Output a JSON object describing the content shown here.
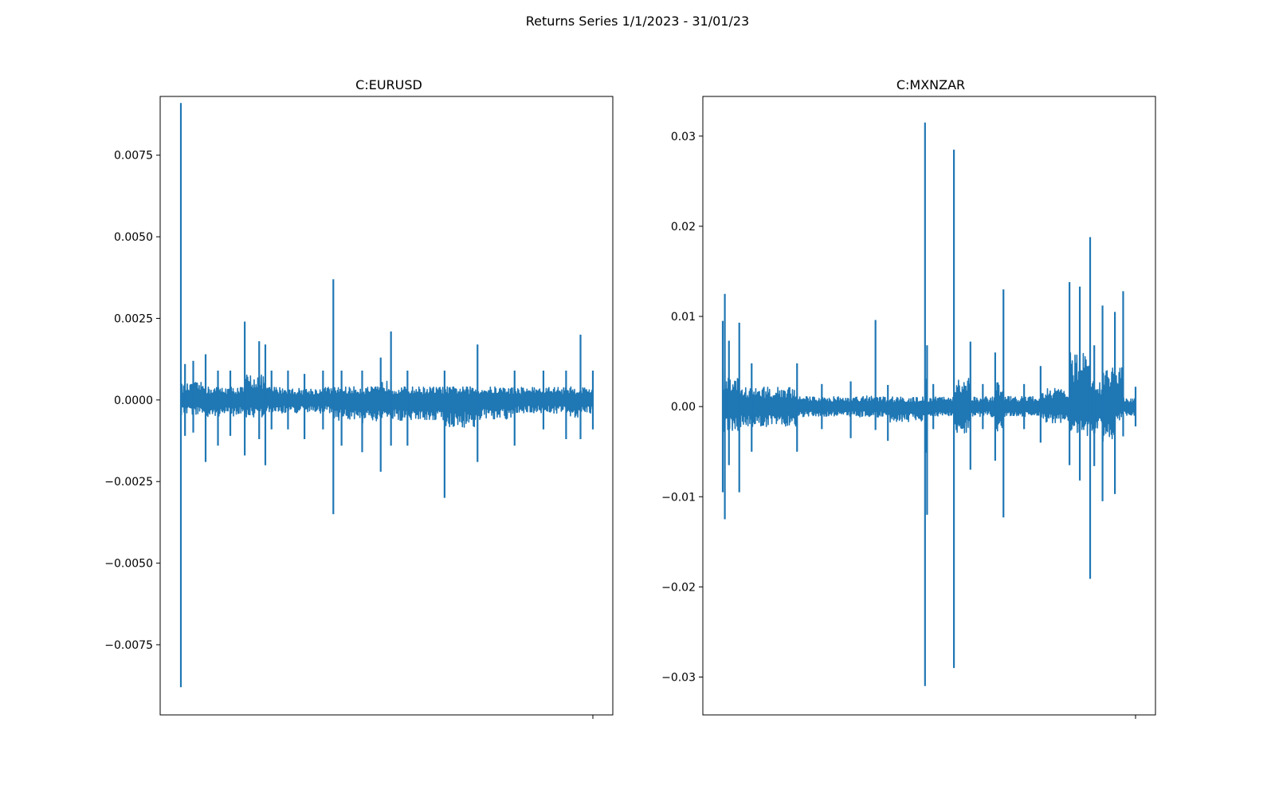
{
  "figure": {
    "suptitle": "Returns Series 1/1/2023 - 31/01/23"
  },
  "line_color": "#1f77b4",
  "chart_data": [
    {
      "type": "line",
      "title": "C:EURUSD",
      "xlabel": "",
      "ylabel": "",
      "ylim": [
        -0.00965,
        0.0093
      ],
      "yticks": [
        -0.0075,
        -0.005,
        -0.0025,
        0.0,
        0.0025,
        0.005,
        0.0075
      ],
      "ytick_labels": [
        "−0.0075",
        "−0.0050",
        "−0.0025",
        "0.0000",
        "0.0025",
        "0.0050",
        "0.0075"
      ],
      "grid": false,
      "series": [
        {
          "color": "#1f77b4",
          "x": [
            0.0,
            0.01,
            0.03,
            0.06,
            0.09,
            0.12,
            0.155,
            0.19,
            0.205,
            0.22,
            0.26,
            0.3,
            0.345,
            0.37,
            0.39,
            0.44,
            0.485,
            0.51,
            0.55,
            0.64,
            0.72,
            0.81,
            0.88,
            0.935,
            0.97,
            1.0
          ],
          "y_high": [
            0.0091,
            0.0011,
            0.0012,
            0.0014,
            0.0009,
            0.0009,
            0.0024,
            0.0018,
            0.0017,
            0.0009,
            0.0009,
            0.0008,
            0.0009,
            0.0037,
            0.0009,
            0.0009,
            0.0013,
            0.0021,
            0.0009,
            0.0009,
            0.0017,
            0.0009,
            0.0009,
            0.0009,
            0.002,
            0.0009
          ],
          "y_low": [
            -0.0088,
            -0.0011,
            -0.001,
            -0.0019,
            -0.0014,
            -0.0011,
            -0.0017,
            -0.0012,
            -0.002,
            -0.0009,
            -0.0009,
            -0.0012,
            -0.0009,
            -0.0035,
            -0.0014,
            -0.0016,
            -0.0022,
            -0.0014,
            -0.0014,
            -0.003,
            -0.0019,
            -0.0014,
            -0.0009,
            -0.0012,
            -0.0012,
            -0.0009
          ]
        }
      ]
    },
    {
      "type": "line",
      "title": "C:MXNZAR",
      "xlabel": "",
      "ylabel": "",
      "ylim": [
        -0.0342,
        0.0344
      ],
      "yticks": [
        -0.03,
        -0.02,
        -0.01,
        0.0,
        0.01,
        0.02,
        0.03
      ],
      "ytick_labels": [
        "−0.03",
        "−0.02",
        "−0.01",
        "0.00",
        "0.01",
        "0.02",
        "0.03"
      ],
      "grid": false,
      "series": [
        {
          "color": "#1f77b4",
          "x": [
            0.0,
            0.005,
            0.015,
            0.04,
            0.07,
            0.18,
            0.24,
            0.31,
            0.37,
            0.4,
            0.49,
            0.495,
            0.51,
            0.56,
            0.6,
            0.63,
            0.66,
            0.68,
            0.73,
            0.77,
            0.84,
            0.865,
            0.89,
            0.9,
            0.92,
            0.95,
            0.97,
            1.0
          ],
          "y_high": [
            0.0095,
            0.0125,
            0.0073,
            0.0093,
            0.0048,
            0.0048,
            0.0025,
            0.0028,
            0.0096,
            0.0024,
            0.0315,
            0.0068,
            0.0025,
            0.0285,
            0.0072,
            0.0025,
            0.006,
            0.013,
            0.0025,
            0.0045,
            0.0138,
            0.0133,
            0.0188,
            0.0068,
            0.0112,
            0.0105,
            0.0128,
            0.0022
          ],
          "y_low": [
            -0.0095,
            -0.0125,
            -0.0065,
            -0.0095,
            -0.005,
            -0.005,
            -0.0025,
            -0.0035,
            -0.0026,
            -0.0038,
            -0.031,
            -0.012,
            -0.0025,
            -0.029,
            -0.007,
            -0.0025,
            -0.006,
            -0.0123,
            -0.0025,
            -0.004,
            -0.0065,
            -0.0082,
            -0.0191,
            -0.0066,
            -0.0105,
            -0.0097,
            -0.0033,
            -0.0022
          ]
        }
      ]
    }
  ]
}
